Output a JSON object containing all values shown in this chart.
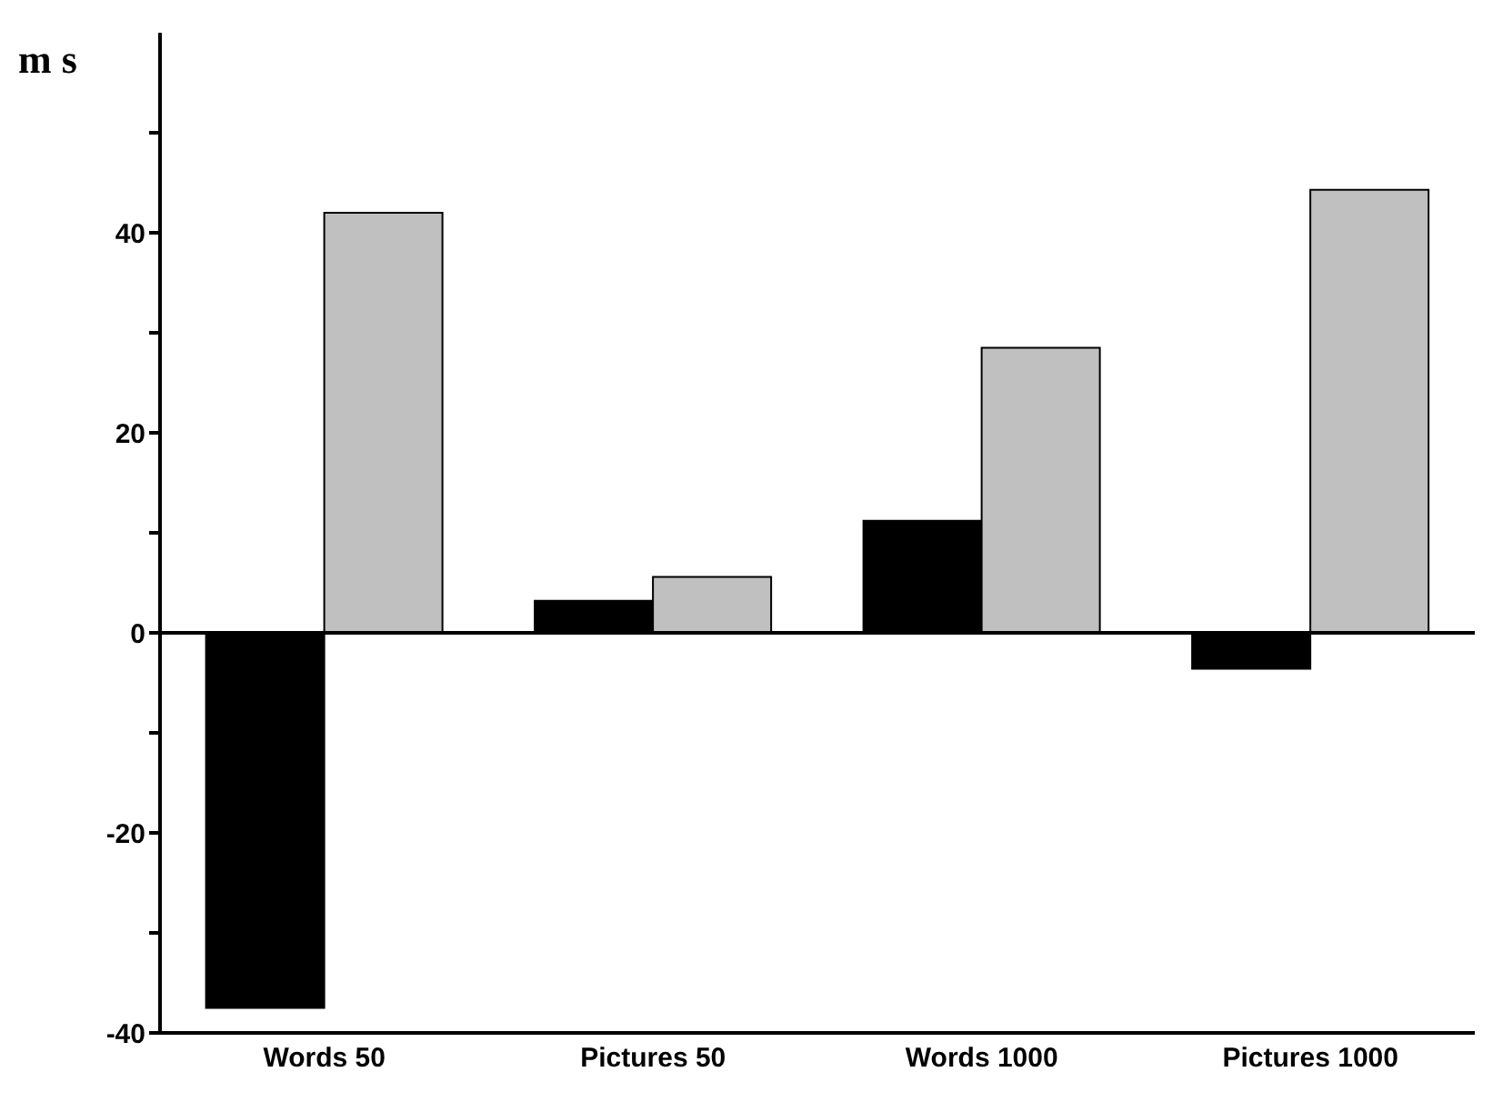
{
  "chart_data": {
    "type": "bar",
    "ylabel": "m s",
    "categories": [
      "Words 50",
      "Pictures 50",
      "Words 1000",
      "Pictures 1000"
    ],
    "series": [
      {
        "color": "#000000",
        "values": [
          -37.5,
          3.2,
          11.2,
          -3.6
        ]
      },
      {
        "color": "#c0c0c0",
        "values": [
          42,
          5.6,
          28.5,
          44.3
        ]
      }
    ],
    "ylim": [
      -40,
      60
    ],
    "yticks": [
      -40,
      {
        "value": -30,
        "label": null
      },
      -20,
      {
        "value": -10,
        "label": null
      },
      0,
      {
        "value": 10,
        "label": null
      },
      20,
      {
        "value": 30,
        "label": null
      },
      40,
      {
        "value": 50,
        "label": null
      }
    ],
    "ref_lines": [
      {
        "axis": "y",
        "value": 0
      }
    ],
    "grid": false,
    "legend": false
  }
}
